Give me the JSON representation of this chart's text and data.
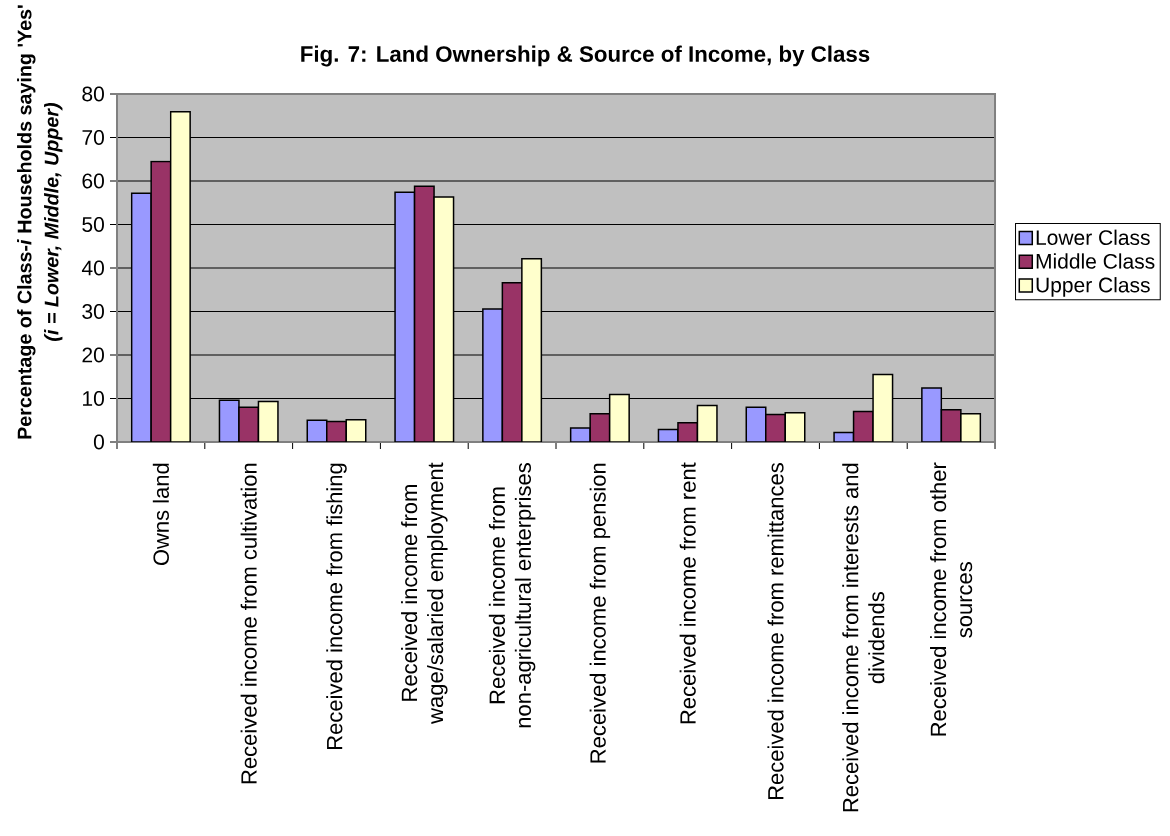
{
  "chart_data": {
    "type": "bar",
    "title": "Fig. 7: Land Ownership & Source of Income, by Class",
    "ylabel": "Percentage of Class-*i* Households saying 'Yes' *(i = Lower, Middle, Upper)*",
    "categories": [
      "Owns land",
      "Received income from cultivation",
      "Received income from fishing",
      "Received income from wage/salaried employment",
      "Received income from non-agricultural enterprises",
      "Received income from pension",
      "Received income from rent",
      "Received income from remittances",
      "Received income from interests and dividends",
      "Received income from other sources"
    ],
    "series": [
      {
        "name": "Lower Class",
        "color": "#9999ff",
        "values": [
          57.2,
          9.6,
          5.0,
          57.4,
          30.6,
          3.2,
          2.9,
          8.0,
          2.2,
          12.4
        ]
      },
      {
        "name": "Middle Class",
        "color": "#993366",
        "values": [
          64.5,
          8.0,
          4.7,
          58.8,
          36.6,
          6.5,
          4.4,
          6.3,
          7.0,
          7.4
        ]
      },
      {
        "name": "Upper Class",
        "color": "#ffffcc",
        "values": [
          75.9,
          9.3,
          5.1,
          56.3,
          42.1,
          10.9,
          8.4,
          6.7,
          15.5,
          6.5
        ]
      }
    ],
    "ylim": [
      0,
      80
    ],
    "yticks": [
      0,
      10,
      20,
      30,
      40,
      50,
      60,
      70,
      80
    ],
    "grid": "y",
    "legend": "right"
  }
}
